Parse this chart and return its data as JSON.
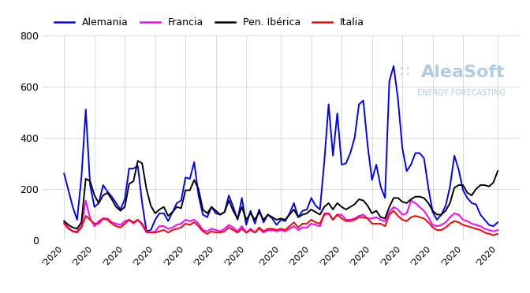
{
  "title": "",
  "legend_entries": [
    "Alemania",
    "Francia",
    "Pen. Ibérica",
    "Italia"
  ],
  "legend_colors": [
    "#0000ff",
    "#ff00ff",
    "#000000",
    "#ff0000"
  ],
  "ylim": [
    0,
    800
  ],
  "yticks": [
    0,
    200,
    400,
    600,
    800
  ],
  "background_color": "#ffffff",
  "grid_color": "#cccccc",
  "watermark_text": "AleaSoft",
  "watermark_sub": "ENERGY FORECASTING",
  "n_xticks": 15,
  "alemania": [
    260,
    195,
    130,
    80,
    245,
    510,
    215,
    130,
    145,
    215,
    190,
    170,
    145,
    120,
    160,
    280,
    280,
    290,
    145,
    35,
    40,
    80,
    105,
    105,
    75,
    110,
    145,
    155,
    245,
    240,
    305,
    175,
    100,
    90,
    130,
    105,
    100,
    110,
    175,
    130,
    80,
    165,
    60,
    115,
    65,
    120,
    70,
    100,
    85,
    60,
    80,
    75,
    105,
    145,
    90,
    115,
    120,
    165,
    135,
    120,
    305,
    530,
    330,
    495,
    295,
    300,
    340,
    400,
    530,
    545,
    370,
    235,
    295,
    210,
    165,
    620,
    680,
    550,
    360,
    270,
    295,
    340,
    340,
    320,
    205,
    110,
    80,
    100,
    135,
    210,
    330,
    275,
    195,
    165,
    145,
    140,
    100,
    80,
    60,
    55,
    70
  ],
  "francia": [
    70,
    50,
    35,
    35,
    55,
    155,
    85,
    55,
    75,
    85,
    85,
    70,
    65,
    60,
    75,
    80,
    65,
    80,
    60,
    30,
    30,
    35,
    55,
    55,
    45,
    50,
    60,
    65,
    80,
    75,
    80,
    65,
    40,
    35,
    45,
    40,
    35,
    45,
    60,
    50,
    35,
    55,
    30,
    45,
    30,
    45,
    30,
    40,
    40,
    35,
    40,
    35,
    45,
    55,
    40,
    50,
    50,
    65,
    60,
    55,
    105,
    105,
    80,
    100,
    100,
    80,
    80,
    85,
    95,
    100,
    85,
    85,
    90,
    80,
    75,
    110,
    130,
    120,
    100,
    105,
    155,
    145,
    130,
    115,
    90,
    60,
    55,
    60,
    70,
    90,
    105,
    100,
    80,
    75,
    65,
    60,
    55,
    45,
    40,
    35,
    40
  ],
  "pen_iberica": [
    75,
    60,
    50,
    45,
    70,
    240,
    230,
    175,
    145,
    175,
    185,
    160,
    130,
    115,
    130,
    220,
    230,
    310,
    300,
    200,
    135,
    105,
    120,
    130,
    95,
    110,
    130,
    125,
    195,
    195,
    235,
    200,
    120,
    105,
    130,
    115,
    100,
    110,
    155,
    115,
    85,
    130,
    80,
    105,
    80,
    110,
    80,
    100,
    90,
    80,
    85,
    80,
    100,
    120,
    90,
    100,
    105,
    120,
    110,
    100,
    130,
    145,
    120,
    145,
    130,
    120,
    130,
    140,
    160,
    155,
    135,
    105,
    115,
    90,
    85,
    130,
    165,
    165,
    150,
    145,
    160,
    170,
    170,
    165,
    145,
    115,
    100,
    100,
    115,
    145,
    205,
    215,
    215,
    185,
    175,
    200,
    215,
    215,
    210,
    225,
    270
  ],
  "italia": [
    65,
    45,
    35,
    30,
    50,
    95,
    80,
    65,
    65,
    85,
    80,
    65,
    55,
    50,
    65,
    80,
    70,
    80,
    65,
    35,
    30,
    30,
    35,
    40,
    30,
    40,
    45,
    50,
    65,
    60,
    70,
    55,
    35,
    25,
    35,
    30,
    30,
    35,
    50,
    40,
    30,
    45,
    30,
    40,
    30,
    50,
    35,
    45,
    45,
    40,
    45,
    40,
    55,
    70,
    50,
    65,
    65,
    80,
    70,
    65,
    100,
    105,
    80,
    100,
    85,
    75,
    75,
    80,
    90,
    90,
    85,
    65,
    65,
    65,
    55,
    100,
    115,
    95,
    80,
    75,
    90,
    95,
    90,
    85,
    70,
    50,
    40,
    40,
    50,
    65,
    75,
    70,
    60,
    55,
    50,
    45,
    40,
    30,
    25,
    20,
    25
  ]
}
